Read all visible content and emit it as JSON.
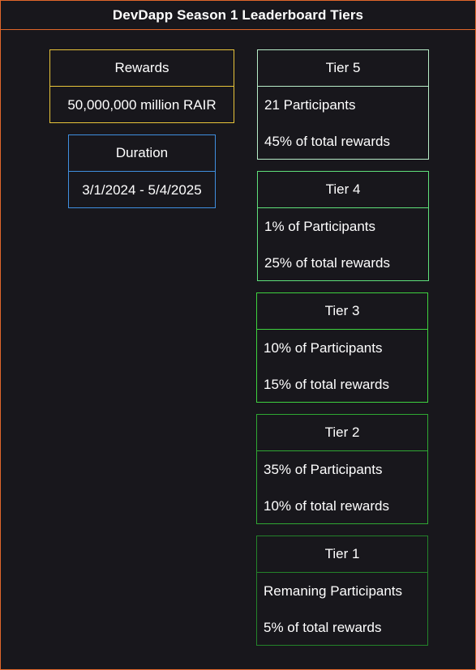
{
  "title": "DevDapp Season 1 Leaderboard Tiers",
  "colors": {
    "background": "#18171c",
    "frame": "#e0662a",
    "rewards": "#e8c43a",
    "duration": "#3f8fe0",
    "tier5": "#b8ecc8",
    "tier4": "#5fe07a",
    "tier3": "#3ed13e",
    "tier2": "#2fa833",
    "tier1": "#23832a"
  },
  "rewards": {
    "label": "Rewards",
    "value": "50,000,000 million RAIR"
  },
  "duration": {
    "label": "Duration",
    "value": "3/1/2024 - 5/4/2025"
  },
  "tiers": [
    {
      "name": "Tier 5",
      "participants": "21 Participants",
      "share": "45% of total rewards"
    },
    {
      "name": "Tier 4",
      "participants": "1% of Participants",
      "share": "25% of total rewards"
    },
    {
      "name": "Tier 3",
      "participants": "10% of Participants",
      "share": "15% of total rewards"
    },
    {
      "name": "Tier 2",
      "participants": "35% of Participants",
      "share": "10% of total rewards"
    },
    {
      "name": "Tier 1",
      "participants": "Remaning Participants",
      "share": "5% of total rewards"
    }
  ]
}
